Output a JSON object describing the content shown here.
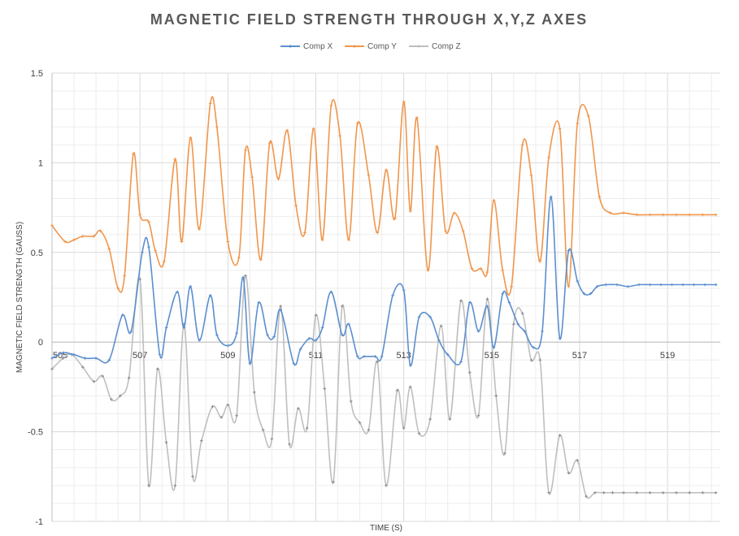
{
  "chart_data": {
    "type": "line",
    "title": "MAGNETIC FIELD STRENGTH THROUGH X,Y,Z AXES",
    "xlabel": "TIME (S)",
    "ylabel": "MAGNETIC FIELD STRENGTH (GAUSS)",
    "xlim": [
      505,
      520.2
    ],
    "ylim": [
      -1,
      1.5
    ],
    "x_ticks": [
      "505",
      "507",
      "509",
      "511",
      "513",
      "515",
      "517",
      "519"
    ],
    "y_ticks": [
      "1.5",
      "1",
      "0.5",
      "0",
      "-0.5",
      "-1"
    ],
    "grid": true,
    "legend_position": "top-center",
    "colors": {
      "Comp X": "#5b8fcf",
      "Comp Y": "#f0964c",
      "Comp Z": "#bfbfbf"
    },
    "series": [
      {
        "name": "Comp X",
        "x": [
          505,
          505.25,
          505.5,
          505.75,
          506,
          506.3,
          506.6,
          506.8,
          507.05,
          507.2,
          507.45,
          507.6,
          507.85,
          508,
          508.15,
          508.35,
          508.6,
          508.75,
          509,
          509.2,
          509.35,
          509.5,
          509.7,
          509.9,
          510.05,
          510.2,
          510.5,
          510.65,
          510.85,
          511,
          511.15,
          511.35,
          511.6,
          511.75,
          511.95,
          512.1,
          512.35,
          512.5,
          512.75,
          513,
          513.15,
          513.35,
          513.6,
          513.8,
          514,
          514.3,
          514.5,
          514.7,
          514.9,
          515.05,
          515.25,
          515.4,
          515.6,
          515.75,
          515.95,
          516.15,
          516.35,
          516.55,
          516.75,
          516.95,
          517.1,
          517.25,
          517.4,
          517.6,
          517.85,
          518.1,
          518.35,
          518.6,
          518.85,
          519.1,
          519.35,
          519.6,
          519.85,
          520.1
        ],
        "y": [
          -0.09,
          -0.06,
          -0.07,
          -0.09,
          -0.09,
          -0.1,
          0.15,
          0.06,
          0.5,
          0.53,
          -0.07,
          0.08,
          0.28,
          0.08,
          0.31,
          0.01,
          0.26,
          0.04,
          -0.02,
          0.05,
          0.36,
          -0.12,
          0.22,
          0.04,
          0.03,
          0.18,
          -0.12,
          -0.04,
          0.02,
          0.01,
          0.08,
          0.28,
          0.04,
          0.1,
          -0.08,
          -0.08,
          -0.08,
          -0.08,
          0.26,
          0.29,
          -0.13,
          0.14,
          0.14,
          0.01,
          -0.07,
          -0.11,
          0.22,
          0.06,
          0.2,
          -0.03,
          0.27,
          0.22,
          0.1,
          0.06,
          -0.03,
          0.06,
          0.81,
          0.02,
          0.51,
          0.34,
          0.27,
          0.27,
          0.31,
          0.32,
          0.32,
          0.31,
          0.32,
          0.32,
          0.32,
          0.32,
          0.32,
          0.32,
          0.32,
          0.32
        ]
      },
      {
        "name": "Comp Y",
        "x": [
          505,
          505.3,
          505.5,
          505.7,
          505.95,
          506.1,
          506.3,
          506.5,
          506.65,
          506.85,
          507,
          507.2,
          507.35,
          507.55,
          507.8,
          507.95,
          508.15,
          508.35,
          508.6,
          508.75,
          509,
          509.25,
          509.4,
          509.55,
          509.75,
          509.95,
          510.15,
          510.35,
          510.55,
          510.75,
          510.95,
          511.15,
          511.35,
          511.55,
          511.75,
          511.95,
          512.2,
          512.4,
          512.6,
          512.8,
          513,
          513.15,
          513.3,
          513.55,
          513.75,
          513.95,
          514.15,
          514.35,
          514.55,
          514.75,
          514.9,
          515.05,
          515.25,
          515.45,
          515.7,
          515.9,
          516.1,
          516.3,
          516.55,
          516.75,
          516.95,
          517.2,
          517.45,
          517.7,
          518,
          518.3,
          518.6,
          518.9,
          519.2,
          519.5,
          519.8,
          520.1
        ],
        "y": [
          0.65,
          0.56,
          0.57,
          0.59,
          0.59,
          0.62,
          0.52,
          0.3,
          0.37,
          1.05,
          0.71,
          0.67,
          0.51,
          0.45,
          1.02,
          0.56,
          1.14,
          0.63,
          1.33,
          1.2,
          0.56,
          0.47,
          1.07,
          0.92,
          0.46,
          1.11,
          0.91,
          1.18,
          0.76,
          0.61,
          1.19,
          0.57,
          1.32,
          1.15,
          0.57,
          1.22,
          0.93,
          0.61,
          0.96,
          0.69,
          1.34,
          0.73,
          1.25,
          0.4,
          1.09,
          0.62,
          0.72,
          0.62,
          0.41,
          0.41,
          0.39,
          0.79,
          0.4,
          0.31,
          1.1,
          0.93,
          0.45,
          1.03,
          1.19,
          0.31,
          1.22,
          1.26,
          0.81,
          0.72,
          0.72,
          0.71,
          0.71,
          0.71,
          0.71,
          0.71,
          0.71,
          0.71
        ]
      },
      {
        "name": "Comp Z",
        "x": [
          505,
          505.25,
          505.45,
          505.7,
          505.95,
          506.15,
          506.35,
          506.55,
          506.75,
          507,
          507.2,
          507.4,
          507.6,
          507.8,
          508,
          508.2,
          508.4,
          508.65,
          508.85,
          509,
          509.2,
          509.4,
          509.6,
          509.8,
          510,
          510.2,
          510.4,
          510.6,
          510.8,
          511,
          511.2,
          511.4,
          511.6,
          511.8,
          512,
          512.2,
          512.4,
          512.6,
          512.85,
          513,
          513.15,
          513.35,
          513.6,
          513.85,
          514.05,
          514.3,
          514.5,
          514.7,
          514.9,
          515.1,
          515.3,
          515.5,
          515.7,
          515.9,
          516.1,
          516.3,
          516.55,
          516.75,
          516.95,
          517.15,
          517.35,
          517.55,
          517.75,
          518,
          518.3,
          518.6,
          518.9,
          519.2,
          519.5,
          519.8,
          520.1
        ],
        "y": [
          -0.15,
          -0.09,
          -0.07,
          -0.14,
          -0.22,
          -0.19,
          -0.32,
          -0.3,
          -0.2,
          0.35,
          -0.8,
          -0.15,
          -0.56,
          -0.8,
          0.1,
          -0.75,
          -0.55,
          -0.36,
          -0.42,
          -0.35,
          -0.41,
          0.37,
          -0.28,
          -0.49,
          -0.54,
          0.2,
          -0.57,
          -0.37,
          -0.48,
          0.15,
          -0.26,
          -0.78,
          0.2,
          -0.33,
          -0.45,
          -0.49,
          -0.11,
          -0.8,
          -0.27,
          -0.48,
          -0.25,
          -0.51,
          -0.43,
          0.09,
          -0.43,
          0.23,
          -0.17,
          -0.41,
          0.24,
          -0.3,
          -0.62,
          0.1,
          0.16,
          -0.1,
          -0.1,
          -0.84,
          -0.52,
          -0.73,
          -0.66,
          -0.86,
          -0.84,
          -0.84,
          -0.84,
          -0.84,
          -0.84,
          -0.84,
          -0.84,
          -0.84,
          -0.84,
          -0.84,
          -0.84
        ]
      }
    ]
  }
}
